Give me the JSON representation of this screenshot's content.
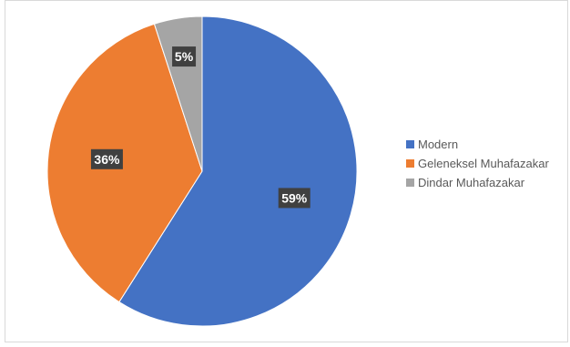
{
  "chart_data": {
    "type": "pie",
    "categories": [
      "Modern",
      "Geleneksel Muhafazakar",
      "Dindar Muhafazakar"
    ],
    "values": [
      59,
      36,
      5
    ],
    "labels": [
      "59%",
      "36%",
      "5%"
    ],
    "colors": [
      "#4472c4",
      "#ed7d31",
      "#a5a5a5"
    ],
    "legend_position": "right",
    "title": ""
  }
}
